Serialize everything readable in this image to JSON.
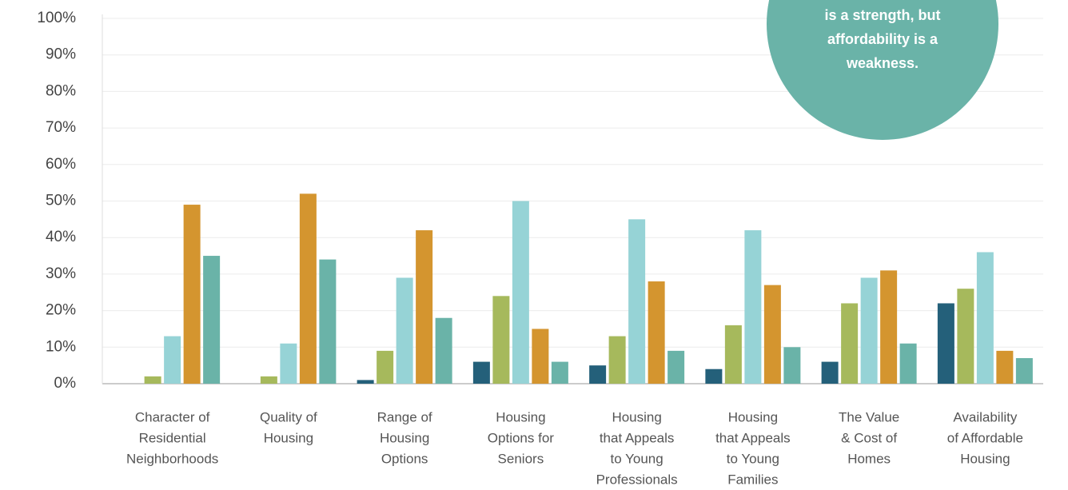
{
  "chart_data": {
    "type": "bar",
    "categories": [
      [
        "Character of",
        "Residential",
        "Neighborhoods"
      ],
      [
        "Quality of",
        "Housing"
      ],
      [
        "Range of",
        "Housing",
        "Options"
      ],
      [
        "Housing",
        "Options for",
        "Seniors"
      ],
      [
        "Housing",
        "that Appeals",
        "to Young",
        "Professionals"
      ],
      [
        "Housing",
        "that Appeals",
        "to Young",
        "Families"
      ],
      [
        "The Value",
        "& Cost of",
        "Homes"
      ],
      [
        "Availability",
        "of Affordable",
        "Housing"
      ]
    ],
    "series": [
      {
        "color": "#24607a",
        "values": [
          0,
          0,
          1,
          6,
          5,
          4,
          6,
          22
        ]
      },
      {
        "color": "#a6b95c",
        "values": [
          2,
          2,
          9,
          24,
          13,
          16,
          22,
          26
        ]
      },
      {
        "color": "#96d3d6",
        "values": [
          13,
          11,
          29,
          50,
          45,
          42,
          29,
          36
        ]
      },
      {
        "color": "#d4952f",
        "values": [
          49,
          52,
          42,
          15,
          28,
          27,
          31,
          9
        ]
      },
      {
        "color": "#6ab3a8",
        "values": [
          35,
          34,
          18,
          6,
          9,
          10,
          11,
          7
        ]
      }
    ],
    "ylim": [
      0,
      100
    ],
    "yticks": [
      {
        "value": 0,
        "label": "0%"
      },
      {
        "value": 10,
        "label": "10%"
      },
      {
        "value": 20,
        "label": "20%"
      },
      {
        "value": 30,
        "label": "30%"
      },
      {
        "value": 40,
        "label": "40%"
      },
      {
        "value": 50,
        "label": "50%"
      },
      {
        "value": 60,
        "label": "60%"
      },
      {
        "value": 70,
        "label": "70%"
      },
      {
        "value": 80,
        "label": "80%"
      },
      {
        "value": 90,
        "label": "90%"
      },
      {
        "value": 100,
        "label": "100%"
      }
    ],
    "grid": true,
    "annotation": {
      "color": "#6ab3a8",
      "lines": [
        "is a strength, but",
        "affordability is a",
        "weakness."
      ]
    }
  }
}
